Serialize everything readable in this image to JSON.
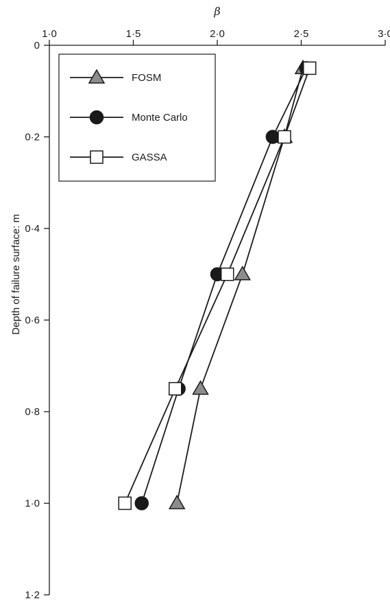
{
  "chart_data": {
    "type": "line",
    "xlabel": "β",
    "ylabel": "Depth of failure surface: m",
    "xlim": [
      1.0,
      3.0
    ],
    "ylim": [
      0,
      1.2
    ],
    "y_inverted": true,
    "x_axis_position": "top",
    "xticks": [
      1.0,
      1.5,
      2.0,
      2.5,
      3.0
    ],
    "xtick_labels": [
      "1·0",
      "1·5",
      "2·0",
      "2·5",
      "3·0"
    ],
    "yticks": [
      0,
      0.2,
      0.4,
      0.6,
      0.8,
      1.0,
      1.2
    ],
    "ytick_labels": [
      "0",
      "0·2",
      "0·4",
      "0·6",
      "0·8",
      "1·0",
      "1·2"
    ],
    "grid": false,
    "legend_position": "top-left",
    "series": [
      {
        "name": "FOSM",
        "marker": "triangle",
        "marker_fill": "#8c8c8c",
        "points": [
          [
            2.51,
            0.05
          ],
          [
            2.4,
            0.2
          ],
          [
            2.15,
            0.5
          ],
          [
            1.9,
            0.75
          ],
          [
            1.76,
            1.0
          ]
        ]
      },
      {
        "name": "Monte Carlo",
        "marker": "circle",
        "marker_fill": "#1a1a1a",
        "points": [
          [
            2.53,
            0.05
          ],
          [
            2.33,
            0.2
          ],
          [
            2.0,
            0.5
          ],
          [
            1.77,
            0.75
          ],
          [
            1.55,
            1.0
          ]
        ]
      },
      {
        "name": "GASSA",
        "marker": "square",
        "marker_fill": "#ffffff",
        "points": [
          [
            2.55,
            0.05
          ],
          [
            2.4,
            0.2
          ],
          [
            2.06,
            0.5
          ],
          [
            1.75,
            0.75
          ],
          [
            1.45,
            1.0
          ]
        ]
      }
    ]
  }
}
